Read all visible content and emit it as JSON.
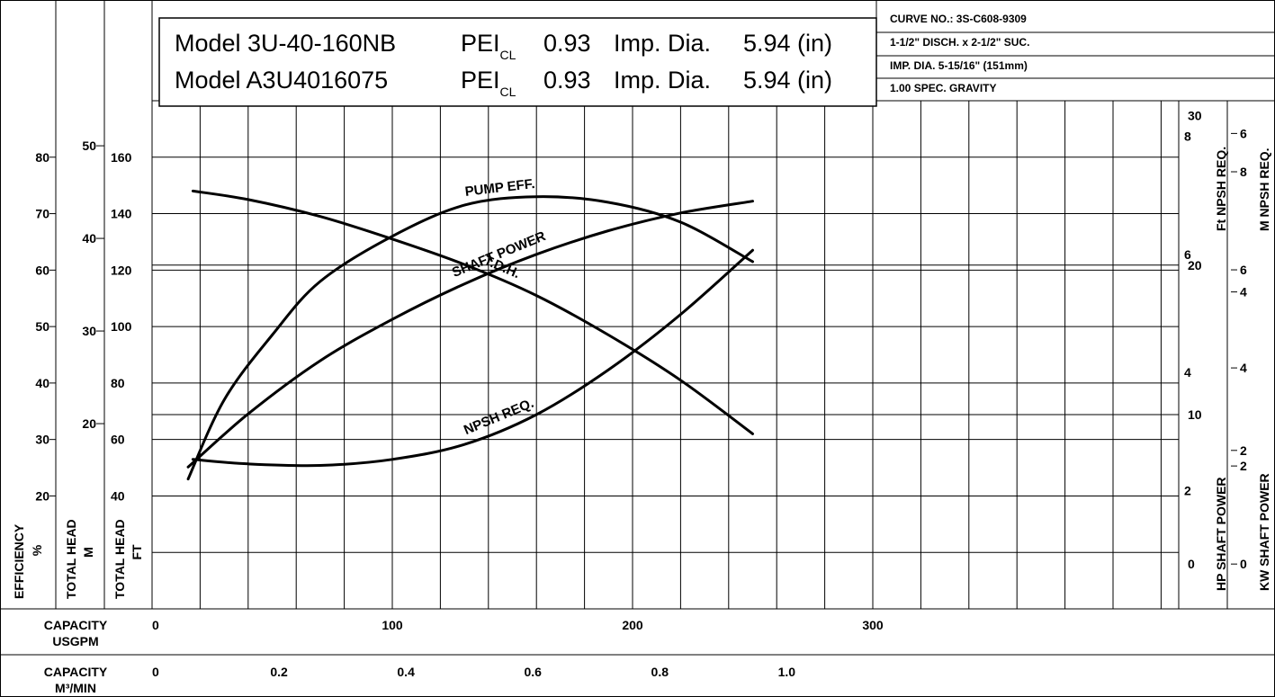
{
  "header": {
    "model_lines": [
      {
        "model": "Model 3U-40-160NB",
        "pei": "PEI",
        "pei_sub": "CL",
        "pei_value": "0.93",
        "imp": "Imp. Dia.",
        "dia": "5.94 (in)"
      },
      {
        "model": "Model A3U4016075",
        "pei": "PEI",
        "pei_sub": "CL",
        "pei_value": "0.93",
        "imp": "Imp. Dia.",
        "dia": "5.94 (in)"
      }
    ],
    "info_lines": [
      "CURVE NO.: 3S-C608-9309",
      "1-1/2\" DISCH. x 2-1/2\" SUC.",
      "IMP. DIA. 5-15/16\" (151mm)",
      "1.00 SPEC. GRAVITY"
    ]
  },
  "chart_data": {
    "type": "line",
    "x_unit": "USGPM",
    "xlim": [
      0,
      370
    ],
    "axes": {
      "efficiency": {
        "title_lines": [
          "EFFICIENCY",
          "%"
        ],
        "ticks": [
          20,
          30,
          40,
          50,
          60,
          70,
          80
        ],
        "range": [
          0,
          90
        ]
      },
      "total_head_m": {
        "title_lines": [
          "TOTAL HEAD",
          "M"
        ],
        "ticks": [
          20,
          30,
          40,
          50
        ],
        "range": [
          0,
          54.864
        ]
      },
      "total_head_ft": {
        "title_lines": [
          "TOTAL HEAD",
          "FT"
        ],
        "ticks": [
          40,
          60,
          80,
          100,
          120,
          140,
          160
        ],
        "range": [
          0,
          180
        ]
      },
      "npsh_ft": {
        "title": "Ft NPSH REQ.",
        "ticks": [
          0,
          10,
          20,
          30
        ],
        "range": [
          -3,
          31
        ]
      },
      "npsh_m": {
        "title": "M NPSH REQ.",
        "ticks": [
          0,
          2,
          4,
          6,
          8
        ],
        "range": [
          -0.914,
          9.449
        ]
      },
      "hp": {
        "title": "HP SHAFT POWER",
        "ticks": [
          2,
          4,
          6,
          8
        ],
        "range": [
          0,
          8.6
        ]
      },
      "kw": {
        "title": "KW SHAFT POWER",
        "ticks": [
          2,
          4,
          6
        ],
        "range": [
          0,
          6.413
        ]
      },
      "capacity_usgpm": {
        "title_lines": [
          "CAPACITY",
          "USGPM"
        ],
        "ticks": [
          0,
          100,
          200,
          300
        ]
      },
      "capacity_m3min": {
        "title_lines": [
          "CAPACITY",
          "M³/MIN"
        ],
        "ticks": [
          0,
          0.2,
          0.4,
          0.6,
          0.8,
          1.0
        ],
        "tick_labels": [
          "0",
          "0.2",
          "0.4",
          "0.6",
          "0.8",
          "1.0"
        ]
      }
    },
    "series": [
      {
        "name": "NPSH REQ.",
        "axis": "npsh_ft",
        "x": [
          17,
          40,
          70,
          100,
          130,
          160,
          190,
          220,
          250
        ],
        "y": [
          7,
          6.7,
          6.6,
          7,
          8,
          10,
          13,
          16.7,
          21
        ]
      },
      {
        "name": "PUMP EFF.",
        "axis": "efficiency",
        "x": [
          15,
          30,
          50,
          70,
          100,
          130,
          160,
          190,
          220,
          250
        ],
        "y": [
          23,
          37,
          48.5,
          58,
          66,
          71.5,
          73,
          72,
          68.5,
          61.5
        ]
      },
      {
        "name": "T.D.H.",
        "axis": "total_head_ft",
        "x": [
          17,
          40,
          70,
          100,
          130,
          160,
          190,
          220,
          250
        ],
        "y": [
          148,
          145,
          139,
          131,
          122,
          111,
          97,
          81,
          62
        ]
      },
      {
        "name": "SHAFT POWER",
        "axis": "hp",
        "x": [
          15,
          40,
          70,
          100,
          130,
          160,
          190,
          220,
          250
        ],
        "y": [
          2.4,
          3.3,
          4.2,
          4.9,
          5.5,
          6,
          6.4,
          6.7,
          6.9
        ]
      }
    ]
  }
}
